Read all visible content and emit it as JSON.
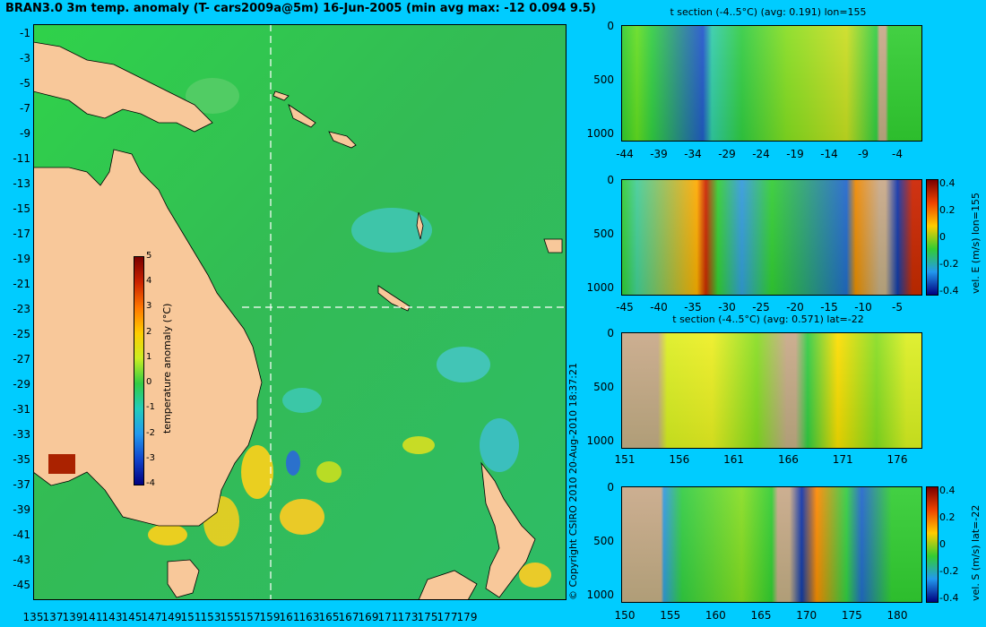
{
  "title": "BRAN3.0 3m temp. anomaly (T- cars2009a@5m) 16-Jun-2005 (min avg max: -12 0.094 9.5)",
  "map": {
    "lat_labels": [
      "-1",
      "-3",
      "-5",
      "-7",
      "-9",
      "-11",
      "-13",
      "-15",
      "-17",
      "-19",
      "-21",
      "-23",
      "-25",
      "-27",
      "-29",
      "-31",
      "-33",
      "-35",
      "-37",
      "-39",
      "-41",
      "-43",
      "-45"
    ],
    "lon_labels": [
      "135",
      "137",
      "139",
      "141",
      "143",
      "145",
      "147",
      "149",
      "151",
      "153",
      "155",
      "157",
      "159",
      "161",
      "163",
      "165",
      "167",
      "169",
      "171",
      "173",
      "175",
      "177",
      "179"
    ],
    "section_lon": 155,
    "section_lat": -22,
    "colors": {
      "land": "#f8c89a",
      "ocean": "#33cc33",
      "section_line": "#ffffff"
    }
  },
  "map_colorbar": {
    "label": "temperature anomaly (°C)",
    "ticks": [
      "5",
      "4",
      "3",
      "2",
      "1",
      "0",
      "-1",
      "-2",
      "-3",
      "-4"
    ],
    "range": [
      -4,
      5
    ]
  },
  "panels": [
    {
      "id": "t-lon",
      "title": "t section (-4..5°C) (avg: 0.191) lon=155",
      "y_labels": [
        "0",
        "500",
        "1000"
      ],
      "x_labels": [
        "-44",
        "-39",
        "-34",
        "-29",
        "-24",
        "-19",
        "-14",
        "-9",
        "-4"
      ],
      "colorbar": null
    },
    {
      "id": "e-lon",
      "title": "",
      "y_labels": [
        "0",
        "500",
        "1000"
      ],
      "x_labels": [
        "-45",
        "-40",
        "-35",
        "-30",
        "-25",
        "-20",
        "-15",
        "-10",
        "-5"
      ],
      "colorbar": {
        "label": "vel. E (m/s) lon=155",
        "ticks": [
          "0.4",
          "0.2",
          "0",
          "-0.2",
          "-0.4"
        ]
      }
    },
    {
      "id": "t-lat",
      "title": "t section (-4..5°C) (avg: 0.571) lat=-22",
      "y_labels": [
        "0",
        "500",
        "1000"
      ],
      "x_labels": [
        "151",
        "156",
        "161",
        "166",
        "171",
        "176"
      ],
      "colorbar": null
    },
    {
      "id": "s-lat",
      "title": "",
      "y_labels": [
        "0",
        "500",
        "1000"
      ],
      "x_labels": [
        "150",
        "155",
        "160",
        "165",
        "170",
        "175",
        "180"
      ],
      "colorbar": {
        "label": "vel. S (m/s) lat=-22",
        "ticks": [
          "0.4",
          "0.2",
          "0",
          "-0.2",
          "-0.4"
        ]
      }
    }
  ],
  "copyright": "© Copyright CSIRO 2010   20-Aug-2010 18:37:21"
}
